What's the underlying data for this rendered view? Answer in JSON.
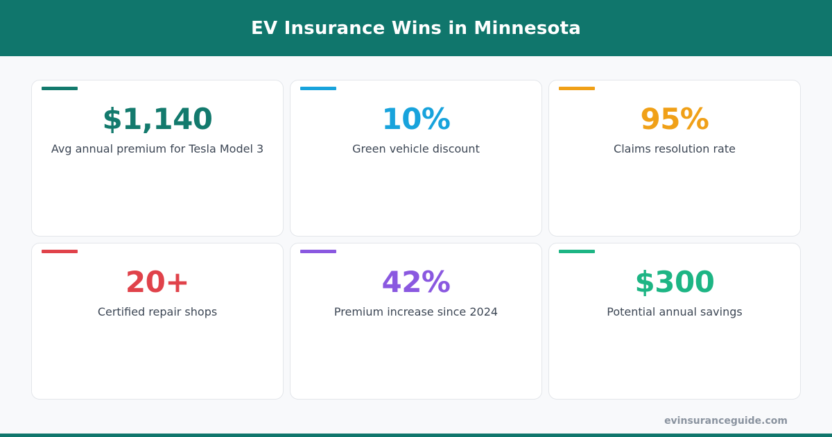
{
  "header": {
    "title": "EV Insurance Wins in Minnesota",
    "background_color": "#10766c"
  },
  "stats": [
    {
      "value": "$1,140",
      "label": "Avg annual premium for Tesla Model 3",
      "color": "#137a6d"
    },
    {
      "value": "10%",
      "label": "Green vehicle discount",
      "color": "#18a3dc"
    },
    {
      "value": "95%",
      "label": "Claims resolution rate",
      "color": "#f0a017"
    },
    {
      "value": "20+",
      "label": "Certified repair shops",
      "color": "#e0424a"
    },
    {
      "value": "42%",
      "label": "Premium increase since 2024",
      "color": "#8a58e0"
    },
    {
      "value": "$300",
      "label": "Potential annual savings",
      "color": "#1db584"
    }
  ],
  "footer": {
    "site": "evinsuranceguide.com",
    "bar_color": "#10766c"
  }
}
